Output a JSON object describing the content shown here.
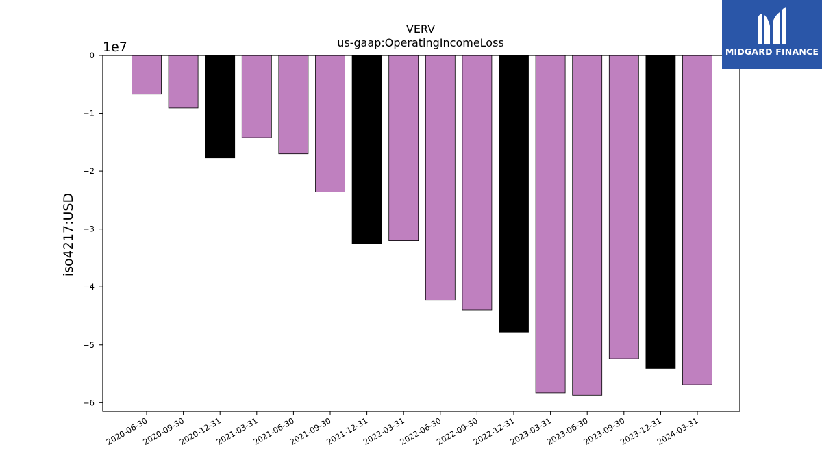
{
  "brand": {
    "name": "MIDGARD FINANCE",
    "logo_icon": "midgard-m-logo-icon",
    "background_color": "#2a56a8"
  },
  "chart_data": {
    "type": "bar",
    "title": "VERV",
    "subtitle": "us-gaap:OperatingIncomeLoss",
    "xlabel": "",
    "ylabel": "iso4217:USD",
    "y_offset_label": "1e7",
    "ylim": [
      -6.15,
      0
    ],
    "yticks": [
      0,
      -1,
      -2,
      -3,
      -4,
      -5,
      -6
    ],
    "ytick_labels": [
      "0",
      "−1",
      "−2",
      "−3",
      "−4",
      "−5",
      "−6"
    ],
    "y_scale_factor": 10000000,
    "grid": false,
    "colors": {
      "quarter": "#bf80bf",
      "annual": "#000000"
    },
    "categories": [
      "2020-06-30",
      "2020-09-30",
      "2020-12-31",
      "2021-03-31",
      "2021-06-30",
      "2021-09-30",
      "2021-12-31",
      "2022-03-31",
      "2022-06-30",
      "2022-09-30",
      "2022-12-31",
      "2023-03-31",
      "2023-06-30",
      "2023-09-30",
      "2023-12-31",
      "2024-03-31"
    ],
    "values": [
      -0.67,
      -0.91,
      -1.77,
      -1.42,
      -1.7,
      -2.36,
      -3.26,
      -3.2,
      -4.23,
      -4.4,
      -4.78,
      -5.83,
      -5.87,
      -5.24,
      -5.41,
      -5.69
    ],
    "bar_kind": [
      "quarter",
      "quarter",
      "annual",
      "quarter",
      "quarter",
      "quarter",
      "annual",
      "quarter",
      "quarter",
      "quarter",
      "annual",
      "quarter",
      "quarter",
      "quarter",
      "annual",
      "quarter"
    ]
  }
}
